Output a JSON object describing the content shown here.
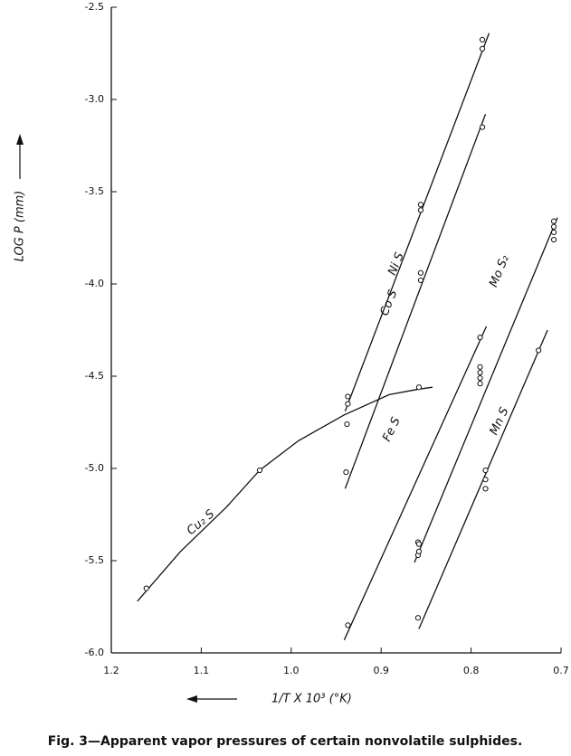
{
  "chart_data": {
    "type": "scatter",
    "caption": "Fig. 3—Apparent vapor pressures of certain nonvolatile sulphides.",
    "x_label": "1/T X 10³ (°K)",
    "y_label": "LOG P (mm)",
    "xlim": [
      1.2,
      0.7
    ],
    "ylim": [
      -6.0,
      -2.5
    ],
    "xticks": [
      1.2,
      1.1,
      {
        "value": 1.0,
        "label": "1.0"
      },
      0.9,
      0.8,
      0.7
    ],
    "yticks": [
      -2.5,
      {
        "value": -3.0,
        "label": "-3.0"
      },
      -3.5,
      {
        "value": -4.0,
        "label": "-4.0"
      },
      -4.5,
      {
        "value": -5.0,
        "label": "-5.0"
      },
      -5.5,
      {
        "value": -6.0,
        "label": "-6.0"
      }
    ],
    "color": "#111111",
    "series": [
      {
        "name": "Ni S",
        "x": [
          0.7875,
          0.7875,
          0.856,
          0.856,
          0.937,
          0.937
        ],
        "values": [
          -2.676,
          -2.725,
          -3.57,
          -3.6,
          -4.61,
          -4.65
        ],
        "line_x": [
          0.94,
          0.78
        ],
        "line_y": [
          -4.69,
          -2.64
        ]
      },
      {
        "name": "Co S",
        "x": [
          0.7875,
          0.856,
          0.856,
          0.938,
          0.939
        ],
        "values": [
          -3.15,
          -3.94,
          -3.98,
          -4.76,
          -5.02
        ],
        "line_x": [
          0.94,
          0.784
        ],
        "line_y": [
          -5.11,
          -3.08
        ]
      },
      {
        "name": "Mo S₂",
        "x": [
          0.708,
          0.708,
          0.708,
          0.708,
          0.79,
          0.79,
          0.79,
          0.79,
          0.859,
          0.859
        ],
        "values": [
          -3.66,
          -3.69,
          -3.72,
          -3.76,
          -4.45,
          -4.48,
          -4.51,
          -4.54,
          -5.4,
          -5.47
        ],
        "line_x": [
          0.863,
          0.704
        ],
        "line_y": [
          -5.51,
          -3.64
        ]
      },
      {
        "name": "Fe S",
        "x": [
          0.79,
          0.858,
          0.858,
          0.937
        ],
        "values": [
          -4.29,
          -5.41,
          -5.45,
          -5.85
        ],
        "line_x": [
          0.941,
          0.783
        ],
        "line_y": [
          -5.93,
          -4.23
        ]
      },
      {
        "name": "Mn S",
        "x": [
          0.725,
          0.784,
          0.784,
          0.784,
          0.859
        ],
        "values": [
          -4.36,
          -5.01,
          -5.06,
          -5.11,
          -5.81
        ],
        "line_x": [
          0.858,
          0.715
        ],
        "line_y": [
          -5.87,
          -4.25
        ]
      },
      {
        "name": "Cu₂ S",
        "x": [
          1.161,
          1.035,
          0.858
        ],
        "values": [
          -5.65,
          -5.01,
          -4.56
        ],
        "line_x": [
          1.171,
          1.123,
          1.072,
          1.035,
          0.992,
          0.941,
          0.891,
          0.858,
          0.843
        ],
        "line_y": [
          -5.72,
          -5.45,
          -5.21,
          -5.01,
          -4.85,
          -4.71,
          -4.6,
          -4.57,
          -4.56
        ]
      }
    ]
  }
}
